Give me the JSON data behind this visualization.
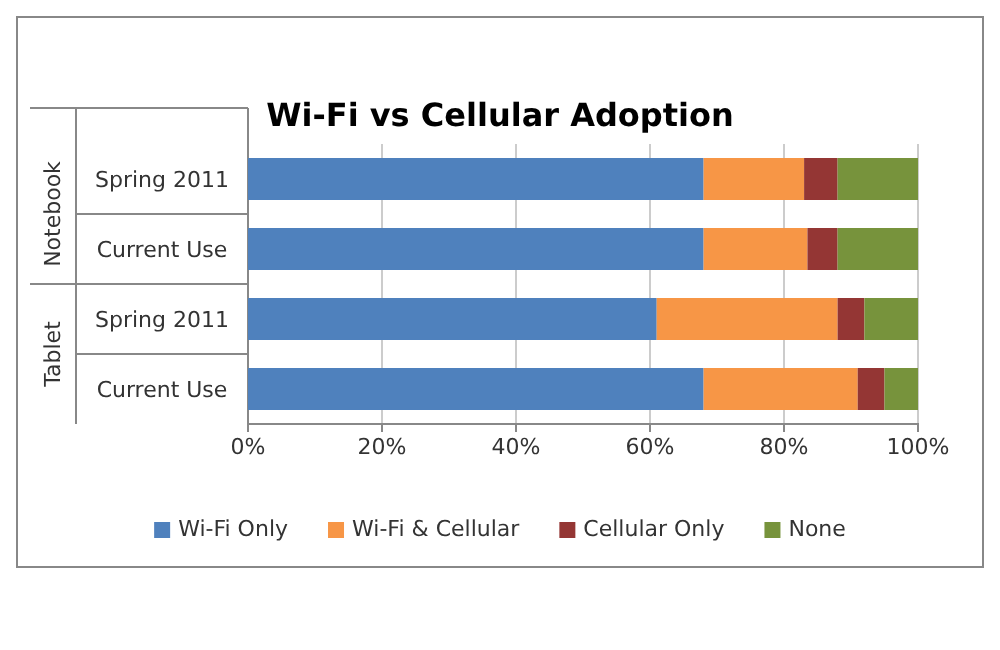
{
  "chart_data": {
    "type": "bar",
    "orientation": "horizontal",
    "stacked": true,
    "title": "Wi-Fi vs Cellular Adoption",
    "categories": [
      "Spring 2011",
      "Current Use",
      "Spring 2011",
      "Current Use"
    ],
    "annotations": [
      "Notebook",
      "Tablet"
    ],
    "series": [
      {
        "name": "Wi-Fi Only",
        "color": "#4f81bd",
        "values": [
          68,
          68,
          61,
          68
        ]
      },
      {
        "name": "Wi-Fi & Cellular",
        "color": "#f79646",
        "values": [
          15,
          15.5,
          27,
          23
        ]
      },
      {
        "name": "Cellular Only",
        "color": "#943634",
        "values": [
          5,
          4.5,
          4,
          4
        ]
      },
      {
        "name": "None",
        "color": "#77933c",
        "values": [
          12,
          12,
          8,
          5
        ]
      }
    ],
    "xlim": [
      0,
      100
    ],
    "xticks": [
      {
        "value": 0,
        "label": "0%"
      },
      {
        "value": 20,
        "label": "20%"
      },
      {
        "value": 40,
        "label": "40%"
      },
      {
        "value": 60,
        "label": "60%"
      },
      {
        "value": 80,
        "label": "80%"
      },
      {
        "value": 100,
        "label": "100%"
      }
    ],
    "grid": "x",
    "legend": "bottom"
  }
}
